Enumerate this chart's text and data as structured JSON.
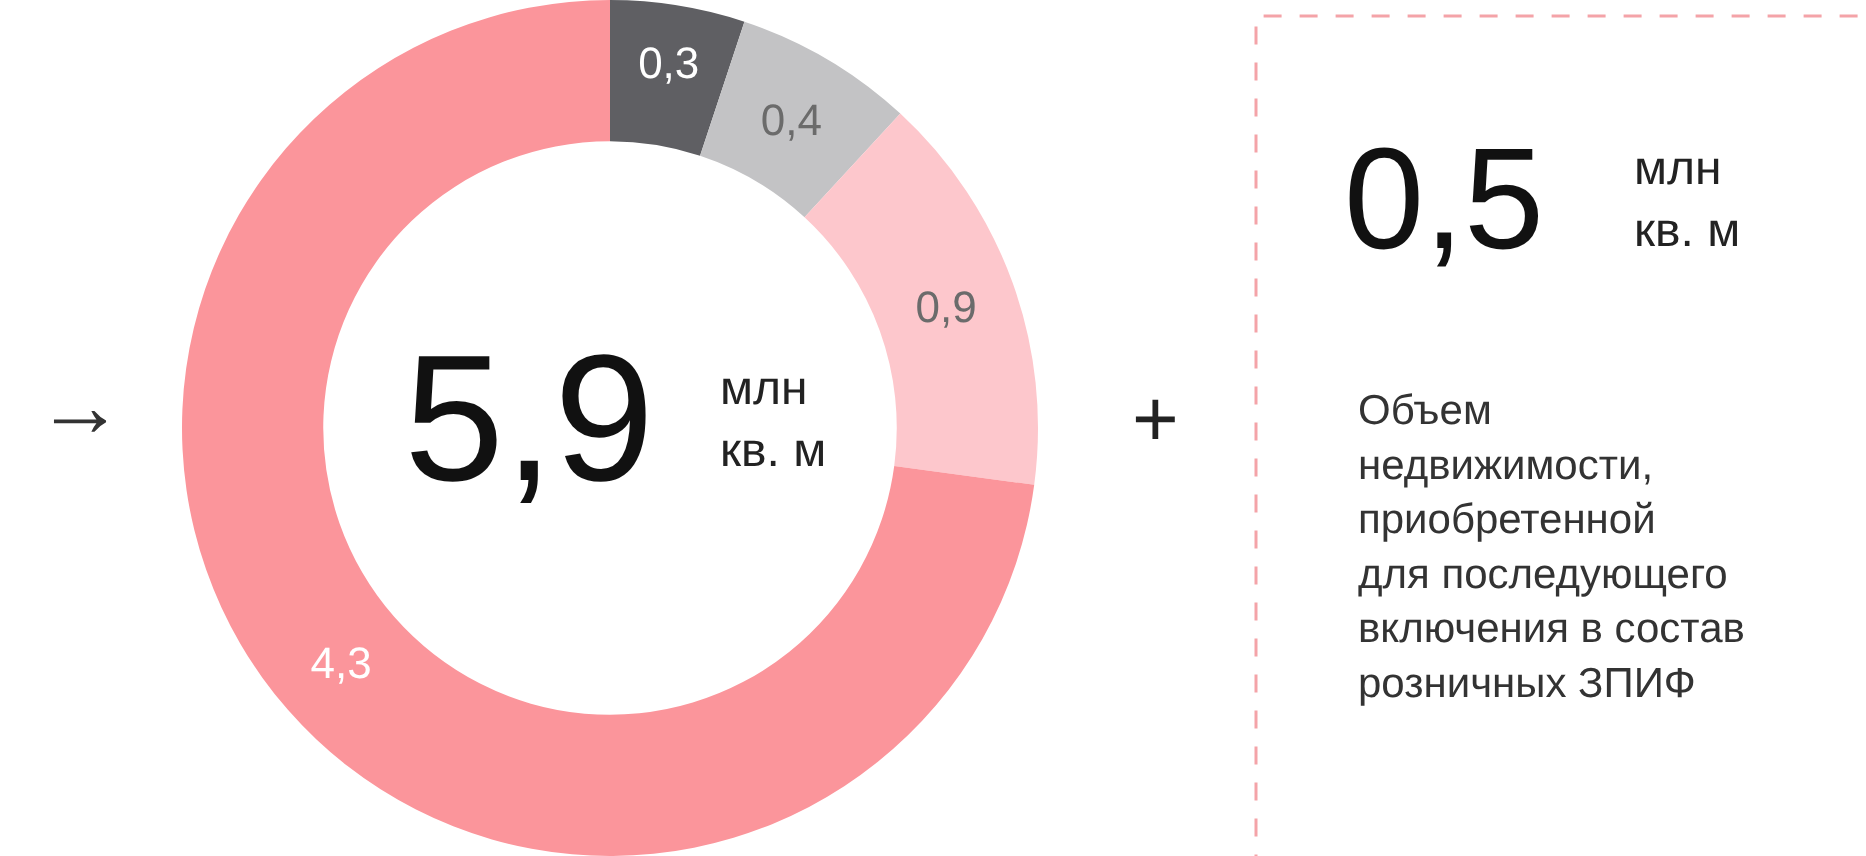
{
  "chart_data": [
    {
      "type": "donut",
      "categories": [
        null,
        null,
        null,
        null
      ],
      "values": [
        0.3,
        0.4,
        0.9,
        4.3
      ],
      "colors": [
        "#5f5f63",
        "#c3c3c5",
        "#fdc7cc",
        "#fb959b"
      ],
      "value_labels": [
        "0,3",
        "0,4",
        "0,9",
        "4,3"
      ],
      "annotations": [
        "5,9",
        "млн\nкв. м",
        "→",
        "+"
      ]
    },
    {
      "type": "other",
      "title": "0,5",
      "subtitle": "млн\nкв. м",
      "annotations": [
        "Объем\nнедвижимости,\nприобретенной\nдля последующего\nвключения в состав\nрозничных ЗПИФ"
      ]
    }
  ]
}
